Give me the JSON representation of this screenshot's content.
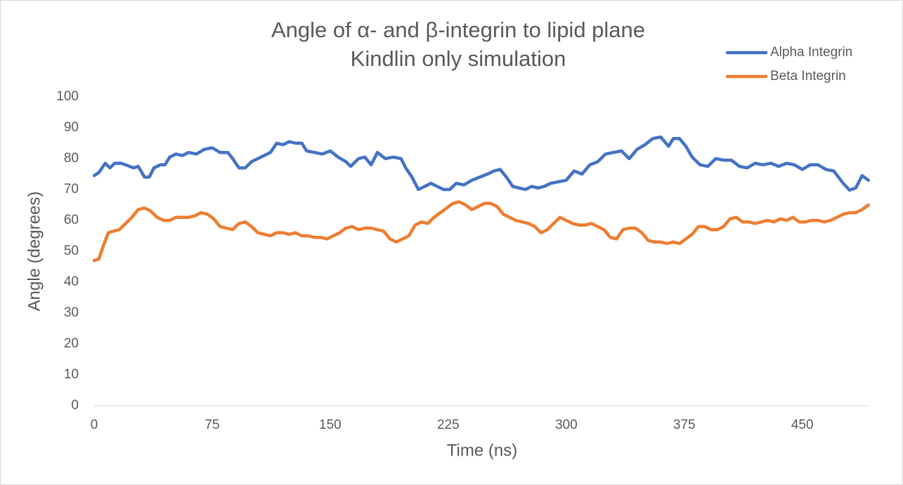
{
  "chart_data": {
    "type": "line",
    "title": "Angle of α- and β-integrin to lipid plane",
    "subtitle": "Kindlin only simulation",
    "x_label": "Time (ns)",
    "y_label": "Angle (degrees)",
    "xlim": [
      0,
      493
    ],
    "xticks": [
      0,
      75,
      150,
      225,
      300,
      375,
      450
    ],
    "ylim": [
      0,
      100
    ],
    "yticks": [
      0,
      10,
      20,
      30,
      40,
      50,
      60,
      70,
      80,
      90,
      100
    ],
    "grid": false,
    "legend": "top-right",
    "series": [
      {
        "name": "Alpha Integrin",
        "color": "#4472c4",
        "x": [
          0,
          3,
          7,
          10,
          13,
          17,
          20,
          25,
          28,
          32,
          35,
          38,
          42,
          45,
          48,
          52,
          56,
          60,
          65,
          70,
          75,
          80,
          85,
          88,
          92,
          96,
          100,
          104,
          108,
          112,
          116,
          120,
          124,
          128,
          132,
          135,
          140,
          145,
          150,
          155,
          160,
          163,
          168,
          172,
          176,
          180,
          185,
          190,
          195,
          198,
          202,
          206,
          210,
          214,
          218,
          222,
          226,
          230,
          235,
          240,
          245,
          250,
          254,
          258,
          262,
          266,
          270,
          274,
          278,
          282,
          286,
          290,
          295,
          300,
          305,
          310,
          315,
          320,
          325,
          330,
          335,
          340,
          345,
          350,
          355,
          360,
          365,
          368,
          372,
          376,
          380,
          385,
          390,
          395,
          400,
          405,
          410,
          415,
          420,
          425,
          430,
          435,
          440,
          445,
          450,
          455,
          460,
          465,
          470,
          476,
          480,
          484,
          488,
          492
        ],
        "values": [
          74.5,
          75.5,
          78.5,
          77,
          78.5,
          78.5,
          78,
          77,
          77.5,
          74,
          74,
          77,
          78,
          78,
          80.5,
          81.5,
          81,
          82,
          81.5,
          83,
          83.5,
          82,
          82,
          80,
          77,
          77,
          79,
          80,
          81,
          82,
          85,
          84.5,
          85.5,
          85,
          85,
          82.5,
          82,
          81.5,
          82.5,
          80.5,
          79,
          77.5,
          80,
          80.5,
          78,
          82,
          80,
          80.5,
          80,
          77,
          74,
          70,
          71,
          72,
          71,
          70,
          70,
          72,
          71.5,
          73,
          74,
          75,
          76,
          76.5,
          74,
          71,
          70.5,
          70,
          71,
          70.5,
          71,
          72,
          72.5,
          73,
          76,
          75,
          78,
          79,
          81.5,
          82,
          82.5,
          80,
          83,
          84.5,
          86.5,
          87,
          84,
          86.5,
          86.5,
          84,
          80.5,
          78,
          77.5,
          80,
          79.5,
          79.5,
          77.5,
          77,
          78.5,
          78,
          78.5,
          77.5,
          78.5,
          78,
          76.5,
          78,
          78,
          76.5,
          76,
          72,
          69.8,
          70.5,
          74.5,
          73
        ]
      },
      {
        "name": "Beta Integrin",
        "color": "#ed7d31",
        "x": [
          0,
          3,
          6,
          9,
          12,
          16,
          20,
          24,
          28,
          32,
          36,
          40,
          44,
          48,
          52,
          56,
          60,
          64,
          68,
          72,
          76,
          80,
          84,
          88,
          92,
          96,
          100,
          104,
          108,
          112,
          116,
          120,
          124,
          128,
          132,
          136,
          140,
          144,
          148,
          152,
          156,
          160,
          164,
          168,
          172,
          176,
          180,
          184,
          188,
          192,
          196,
          200,
          204,
          208,
          212,
          216,
          220,
          224,
          228,
          232,
          236,
          240,
          244,
          248,
          252,
          256,
          260,
          264,
          268,
          272,
          276,
          280,
          284,
          288,
          292,
          296,
          300,
          304,
          308,
          312,
          316,
          320,
          324,
          328,
          332,
          336,
          340,
          344,
          348,
          352,
          356,
          360,
          364,
          368,
          372,
          376,
          380,
          384,
          388,
          392,
          396,
          400,
          404,
          408,
          412,
          416,
          420,
          424,
          428,
          432,
          436,
          440,
          444,
          448,
          452,
          456,
          460,
          464,
          468,
          472,
          476,
          480,
          484,
          488,
          492
        ],
        "values": [
          47,
          47.5,
          52,
          56,
          56.5,
          57,
          59,
          61,
          63.5,
          64,
          63,
          61,
          60,
          60,
          61,
          61,
          61,
          61.5,
          62.5,
          62,
          60.5,
          58,
          57.5,
          57,
          59,
          59.5,
          58,
          56,
          55.5,
          55,
          56,
          56,
          55.5,
          56,
          55,
          55,
          54.5,
          54.5,
          54,
          55,
          56,
          57.5,
          58,
          57,
          57.5,
          57.5,
          57,
          56.5,
          54,
          53,
          54,
          55,
          58.5,
          59.5,
          59,
          61,
          62.5,
          64,
          65.5,
          66,
          65,
          63.5,
          64.5,
          65.5,
          65.5,
          64.5,
          62,
          61,
          60,
          59.5,
          59,
          58,
          56,
          57,
          59,
          61,
          60,
          59,
          58.5,
          58.5,
          59,
          58,
          57,
          54.5,
          54,
          57,
          57.5,
          57.5,
          56,
          53.5,
          53,
          53,
          52.5,
          53,
          52.5,
          54,
          55.5,
          58,
          58,
          57,
          57,
          58,
          60.5,
          61,
          59.5,
          59.5,
          59,
          59.5,
          60,
          59.5,
          60.5,
          60,
          61,
          59.5,
          59.5,
          60,
          60,
          59.5,
          60,
          61,
          62,
          62.5,
          62.5,
          63.5,
          65
        ]
      }
    ]
  }
}
